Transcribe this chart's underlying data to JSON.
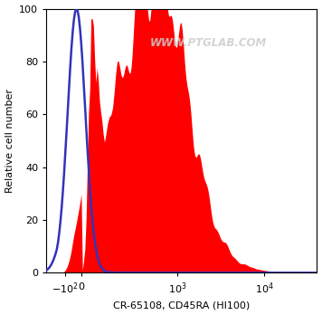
{
  "xlabel": "CR-65108, CD45RA (HI100)",
  "ylabel": "Relative cell number",
  "watermark": "WWW.PTGLAB.COM",
  "ylim": [
    0,
    100
  ],
  "yticks": [
    0,
    20,
    40,
    60,
    80,
    100
  ],
  "background_color": "#ffffff",
  "blue_color": "#3333bb",
  "red_color": "#ff0000",
  "red_fill_alpha": 1.0,
  "figsize": [
    3.56,
    3.48
  ],
  "dpi": 100,
  "linthresh": 150,
  "linscale": 0.25
}
